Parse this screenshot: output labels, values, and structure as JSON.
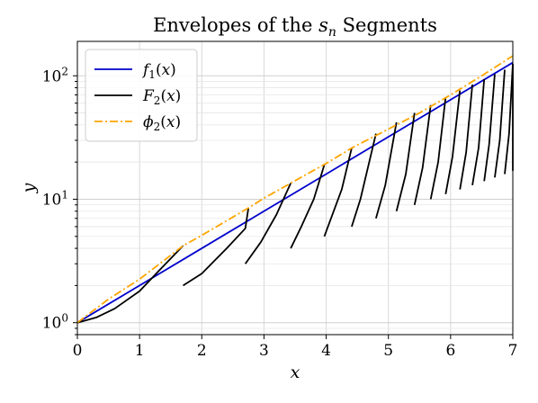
{
  "chart_data": {
    "type": "line",
    "title_parts": [
      "Envelopes of the ",
      "s",
      "n",
      " Segments"
    ],
    "xlabel": "x",
    "ylabel": "y",
    "xlim": [
      0,
      7
    ],
    "ylim": [
      0.8,
      190
    ],
    "yscale": "log",
    "grid": true,
    "legend_position": "upper-left",
    "x_ticks": [
      0,
      1,
      2,
      3,
      4,
      5,
      6,
      7
    ],
    "x_tick_labels": [
      "0",
      "1",
      "2",
      "3",
      "4",
      "5",
      "6",
      "7"
    ],
    "y_major_ticks": [
      1,
      10,
      100
    ],
    "y_tick_labels": [
      [
        "10",
        "0"
      ],
      [
        "10",
        "1"
      ],
      [
        "10",
        "2"
      ]
    ],
    "series": [
      {
        "name": "f1(x)",
        "legend_parts": [
          "f",
          "1",
          "(x)"
        ],
        "color": "#0000cc",
        "style": "solid",
        "points": [
          [
            0,
            1.0
          ],
          [
            1,
            2.0
          ],
          [
            2,
            4.0
          ],
          [
            3,
            8.0
          ],
          [
            4,
            16.0
          ],
          [
            5,
            32.0
          ],
          [
            6,
            64.0
          ],
          [
            7,
            128.0
          ]
        ]
      },
      {
        "name": "F2(x)",
        "legend_parts": [
          "F",
          "2",
          "(x)"
        ],
        "color": "#000000",
        "style": "solid",
        "segments": [
          [
            [
              0.0,
              1.0
            ],
            [
              0.3,
              1.1
            ],
            [
              0.6,
              1.3
            ],
            [
              1.0,
              1.8
            ],
            [
              1.3,
              2.6
            ],
            [
              1.7,
              4.2
            ]
          ],
          [
            [
              1.7,
              2.0
            ],
            [
              2.0,
              2.5
            ],
            [
              2.4,
              4.0
            ],
            [
              2.7,
              5.8
            ],
            [
              2.75,
              8.5
            ]
          ],
          [
            [
              2.7,
              3.0
            ],
            [
              2.95,
              4.5
            ],
            [
              3.2,
              7.5
            ],
            [
              3.43,
              13.5
            ]
          ],
          [
            [
              3.43,
              4.0
            ],
            [
              3.6,
              6.0
            ],
            [
              3.8,
              10.0
            ],
            [
              3.97,
              19.0
            ]
          ],
          [
            [
              3.97,
              5.0
            ],
            [
              4.1,
              7.5
            ],
            [
              4.25,
              12.0
            ],
            [
              4.41,
              26.0
            ]
          ],
          [
            [
              4.41,
              6.0
            ],
            [
              4.55,
              10.0
            ],
            [
              4.8,
              34.0
            ]
          ],
          [
            [
              4.8,
              7.0
            ],
            [
              4.95,
              13.0
            ],
            [
              5.13,
              42.0
            ]
          ],
          [
            [
              5.13,
              8.0
            ],
            [
              5.28,
              16.0
            ],
            [
              5.42,
              50.0
            ]
          ],
          [
            [
              5.42,
              9.0
            ],
            [
              5.55,
              18.0
            ],
            [
              5.68,
              58.0
            ]
          ],
          [
            [
              5.68,
              10.0
            ],
            [
              5.8,
              20.0
            ],
            [
              5.92,
              67.0
            ]
          ],
          [
            [
              5.92,
              11.0
            ],
            [
              6.03,
              22.0
            ],
            [
              6.15,
              76.0
            ]
          ],
          [
            [
              6.15,
              12.0
            ],
            [
              6.25,
              24.0
            ],
            [
              6.35,
              85.0
            ]
          ],
          [
            [
              6.35,
              13.0
            ],
            [
              6.45,
              26.0
            ],
            [
              6.54,
              94.0
            ]
          ],
          [
            [
              6.54,
              14.0
            ],
            [
              6.62,
              28.0
            ],
            [
              6.71,
              103.0
            ]
          ],
          [
            [
              6.71,
              15.0
            ],
            [
              6.79,
              30.0
            ],
            [
              6.87,
              112.0
            ]
          ],
          [
            [
              6.87,
              16.0
            ],
            [
              6.94,
              34.0
            ],
            [
              7.0,
              125.0
            ]
          ],
          [
            [
              7.0,
              17.0
            ],
            [
              7.0,
              125.0
            ]
          ]
        ]
      },
      {
        "name": "phi2(x)",
        "legend_parts": [
          "ϕ",
          "2",
          "(x)"
        ],
        "color": "#ffa500",
        "style": "dashdot",
        "points": [
          [
            0,
            1.0
          ],
          [
            0.5,
            1.55
          ],
          [
            1,
            2.25
          ],
          [
            1.7,
            4.2
          ],
          [
            2,
            5.1
          ],
          [
            2.75,
            8.5
          ],
          [
            3,
            10.2
          ],
          [
            3.43,
            13.5
          ],
          [
            4,
            19.5
          ],
          [
            4.41,
            26.0
          ],
          [
            5,
            37.0
          ],
          [
            5.5,
            50.0
          ],
          [
            6,
            70.0
          ],
          [
            6.5,
            100.0
          ],
          [
            7,
            145.0
          ]
        ]
      }
    ]
  }
}
